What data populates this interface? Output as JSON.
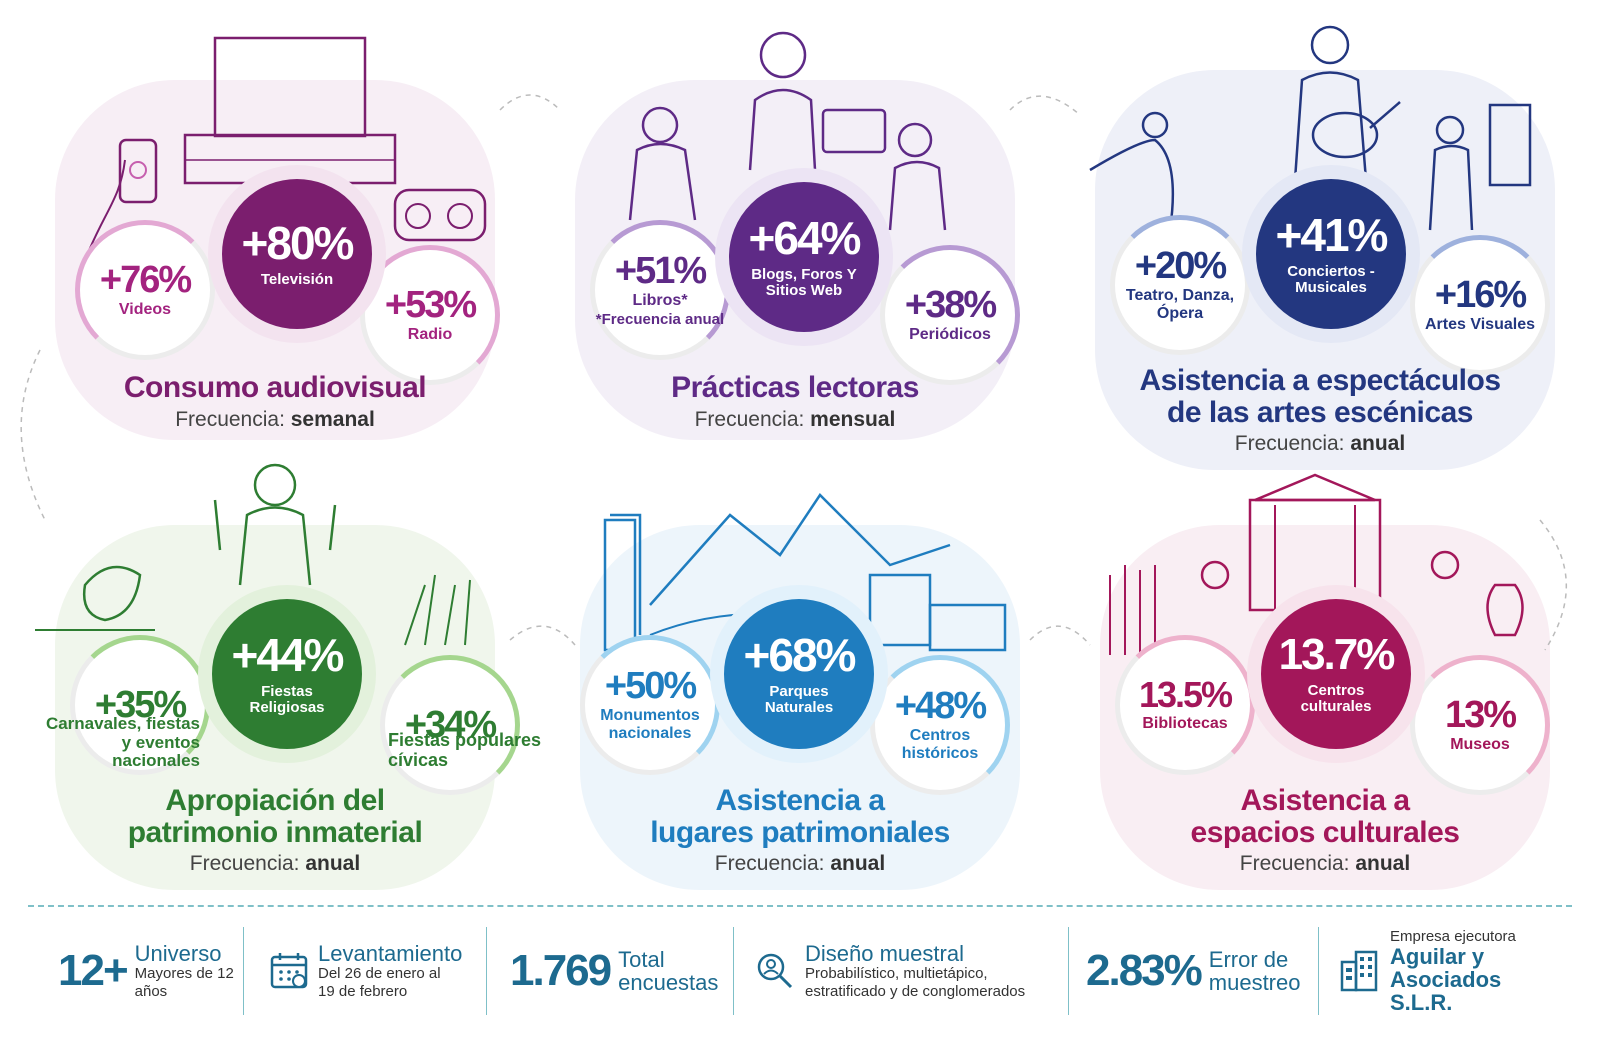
{
  "panels": [
    {
      "id": "audiovisual",
      "color": "#7b1e6e",
      "light": "#e3a8d3",
      "main": {
        "value": "+80%",
        "label": "Televisión"
      },
      "left": {
        "value": "+76%",
        "label": "Videos"
      },
      "right": {
        "value": "+53%",
        "label": "Radio"
      },
      "title": "Consumo audiovisual",
      "freq_prefix": "Frecuencia:",
      "freq_value": "semanal"
    },
    {
      "id": "lectoras",
      "color": "#5e2a86",
      "light": "#b79ad3",
      "main": {
        "value": "+64%",
        "label": "Blogs, Foros Y Sitios Web"
      },
      "left": {
        "value": "+51%",
        "label": "Libros*",
        "note": "*Frecuencia anual"
      },
      "right": {
        "value": "+38%",
        "label": "Periódicos"
      },
      "title": "Prácticas lectoras",
      "freq_prefix": "Frecuencia:",
      "freq_value": "mensual"
    },
    {
      "id": "escenicas",
      "color": "#233780",
      "light": "#9eb1dd",
      "main": {
        "value": "+41%",
        "label": "Conciertos - Musicales"
      },
      "left": {
        "value": "+20%",
        "label": "Teatro, Danza, Ópera"
      },
      "right": {
        "value": "+16%",
        "label": "Artes Visuales"
      },
      "title_l1": "Asistencia a espectáculos",
      "title_l2": "de las artes escénicas",
      "freq_prefix": "Frecuencia:",
      "freq_value": "anual"
    },
    {
      "id": "inmaterial",
      "color": "#2e7d32",
      "light": "#a5d68e",
      "main": {
        "value": "+44%",
        "label": "Fiestas Religiosas"
      },
      "left": {
        "value": "+35%",
        "label": "Carnavales, fiestas y eventos nacionales"
      },
      "right": {
        "value": "+34%",
        "label": "Fiestas populares cívicas"
      },
      "title_l1": "Apropiación del",
      "title_l2": "patrimonio inmaterial",
      "freq_prefix": "Frecuencia:",
      "freq_value": "anual"
    },
    {
      "id": "patrimoniales",
      "color": "#1f7dbf",
      "light": "#9fd3f0",
      "main": {
        "value": "+68%",
        "label": "Parques Naturales"
      },
      "left": {
        "value": "+50%",
        "label": "Monumentos nacionales"
      },
      "right": {
        "value": "+48%",
        "label": "Centros históricos"
      },
      "title_l1": "Asistencia a",
      "title_l2": "lugares patrimoniales",
      "freq_prefix": "Frecuencia:",
      "freq_value": "anual"
    },
    {
      "id": "espacios",
      "color": "#a3175a",
      "light": "#eeb2cc",
      "main": {
        "value": "13.7%",
        "label": "Centros culturales"
      },
      "left": {
        "value": "13.5%",
        "label": "Bibliotecas"
      },
      "right": {
        "value": "13%",
        "label": "Museos"
      },
      "title_l1": "Asistencia a",
      "title_l2": "espacios culturales",
      "freq_prefix": "Frecuencia:",
      "freq_value": "anual"
    }
  ],
  "footer": {
    "universo": {
      "num": "12+",
      "head": "Universo",
      "sub": "Mayores de 12 años"
    },
    "levantamiento": {
      "icon": "calendar-icon",
      "head": "Levantamiento",
      "sub": "Del 26 de enero al 19 de febrero"
    },
    "encuestas": {
      "num": "1.769",
      "head": "Total encuestas"
    },
    "diseno": {
      "icon": "research-icon",
      "head": "Diseño muestral",
      "sub": "Probabilístico, multietápico, estratificado y de conglomerados"
    },
    "error": {
      "num": "2.83%",
      "head": "Error de muestreo"
    },
    "empresa": {
      "icon": "buildings-icon",
      "sub": "Empresa ejecutora",
      "head": "Aguilar y Asociados S.L.R."
    }
  }
}
